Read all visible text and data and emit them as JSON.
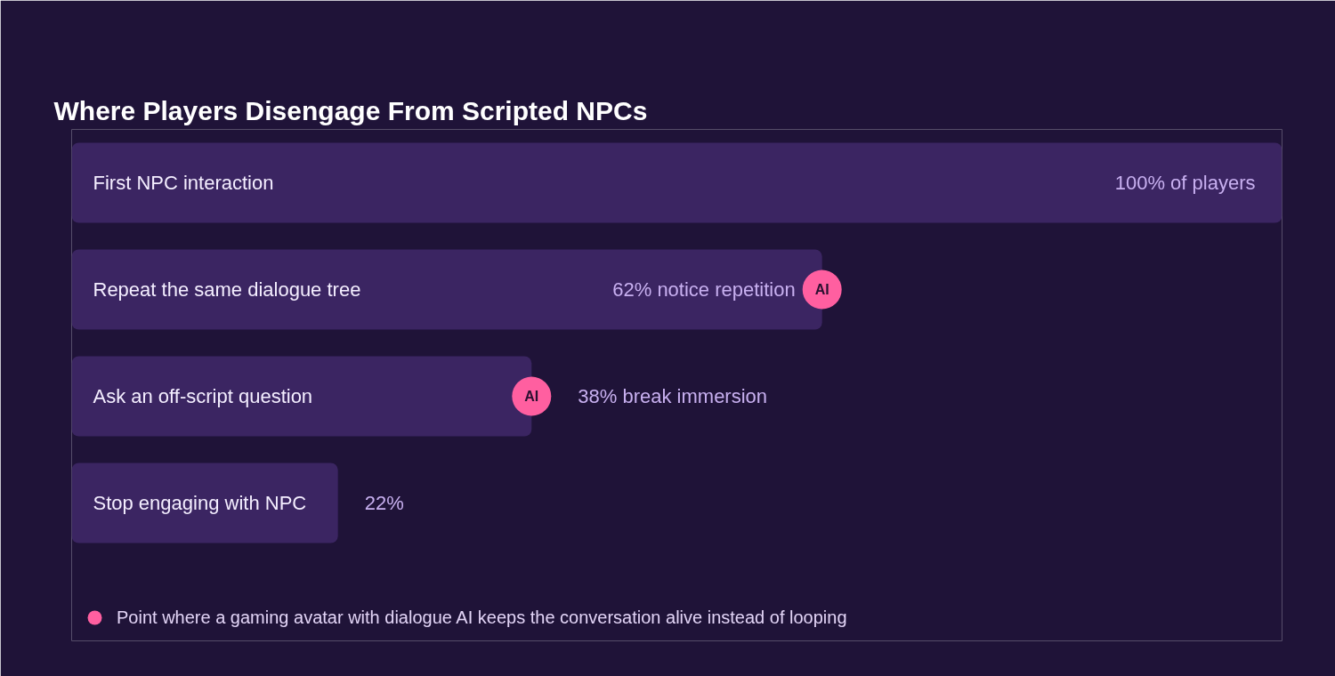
{
  "chart_data": {
    "type": "bar",
    "orientation": "horizontal",
    "title": "Where Players Disengage From Scripted NPCs",
    "categories": [
      "First NPC interaction",
      "Repeat the same dialogue tree",
      "Ask an off-script question",
      "Stop engaging with NPC"
    ],
    "tick_labels": "y",
    "legend": "bottom",
    "marker": "circle",
    "series": [
      {
        "color": "#3b2562",
        "values": [
          100,
          62,
          38,
          22
        ],
        "value_labels": [
          "100% of players",
          "62% notice repetition",
          "38% break immersion",
          "22%"
        ]
      },
      {
        "type": "scatter",
        "name": "Point where a gaming avatar with dialogue AI keeps the conversation alive instead of looping",
        "color": "#ff5fa0",
        "values": [
          null,
          62,
          38,
          null
        ],
        "value_labels": [
          null,
          "AI",
          "AI",
          null
        ]
      }
    ]
  }
}
